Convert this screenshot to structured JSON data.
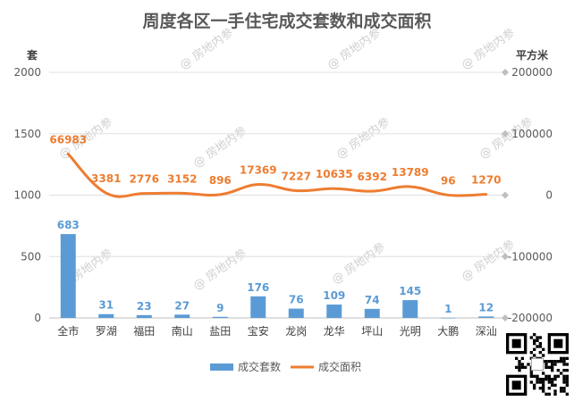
{
  "chart_data": {
    "type": "bar+line",
    "title": "周度各区一手住宅成交套数和成交面积",
    "categories": [
      "全市",
      "罗湖",
      "福田",
      "南山",
      "盐田",
      "宝安",
      "龙岗",
      "龙华",
      "坪山",
      "光明",
      "大鹏",
      "深汕"
    ],
    "series": [
      {
        "name": "成交套数",
        "type": "bar",
        "axis": "left",
        "color": "#5b9bd5",
        "values": [
          683,
          31,
          23,
          27,
          9,
          176,
          76,
          109,
          74,
          145,
          1,
          12
        ]
      },
      {
        "name": "成交面积",
        "type": "line",
        "axis": "right",
        "color": "#ed7d31",
        "values": [
          66983,
          3381,
          2776,
          3152,
          896,
          17369,
          7227,
          10635,
          6392,
          13789,
          96,
          1270
        ]
      }
    ],
    "y_left": {
      "label": "套",
      "ylim": [
        0,
        2000
      ],
      "ticks": [
        "0",
        "500",
        "1000",
        "1500",
        "2000"
      ]
    },
    "y_right": {
      "label": "平方米",
      "ylim": [
        -200000,
        200000
      ],
      "ticks": [
        "-200000",
        "-100000",
        "0",
        "100000",
        "200000"
      ]
    },
    "grid": true,
    "legend": "bottom",
    "watermark": "@ 房地内参"
  }
}
